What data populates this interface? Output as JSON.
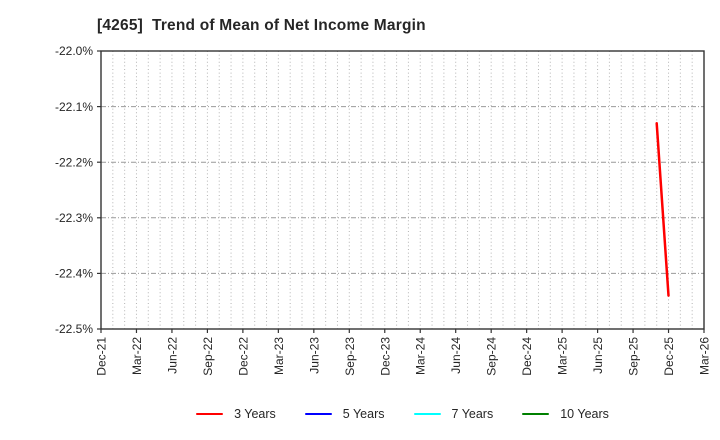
{
  "chart_data": {
    "type": "line",
    "title": "[4265]  Trend of Mean of Net Income Margin",
    "xlabel": "",
    "ylabel": "",
    "grid": true,
    "legend_position": "bottom",
    "ylim": [
      -22.5,
      -22.0
    ],
    "y_ticks": [
      -22.0,
      -22.1,
      -22.2,
      -22.3,
      -22.4,
      -22.5
    ],
    "y_tick_labels": [
      "-22.0%",
      "-22.1%",
      "-22.2%",
      "-22.3%",
      "-22.4%",
      "-22.5%"
    ],
    "x_range_months": [
      "Dec-21",
      "Mar-26"
    ],
    "x_tick_labels": [
      "Dec-21",
      "Mar-22",
      "Jun-22",
      "Sep-22",
      "Dec-22",
      "Mar-23",
      "Jun-23",
      "Sep-23",
      "Dec-23",
      "Mar-24",
      "Jun-24",
      "Sep-24",
      "Dec-24",
      "Mar-25",
      "Jun-25",
      "Sep-25",
      "Dec-25",
      "Mar-26"
    ],
    "series": [
      {
        "name": "3 Years",
        "color": "#ff0000",
        "points": [
          {
            "date": "Nov-25",
            "value": -22.13
          },
          {
            "date": "Dec-25",
            "value": -22.44
          }
        ]
      },
      {
        "name": "5 Years",
        "color": "#0000ff",
        "points": []
      },
      {
        "name": "7 Years",
        "color": "#00ffff",
        "points": []
      },
      {
        "name": "10 Years",
        "color": "#008000",
        "points": []
      }
    ]
  }
}
